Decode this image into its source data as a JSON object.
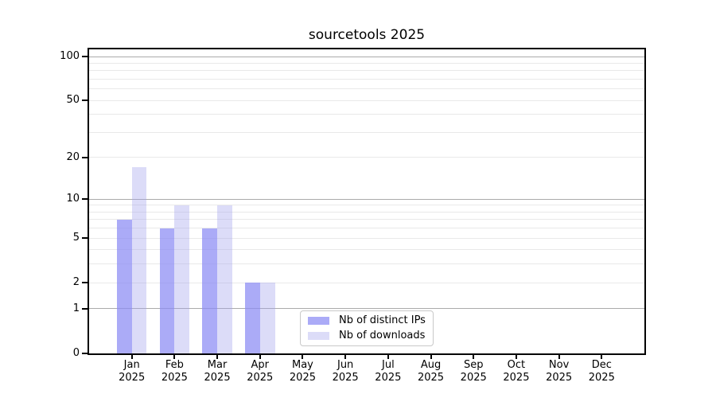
{
  "title": "sourcetools 2025",
  "colors": {
    "bar_ips": "rgba(138,138,244,0.72)",
    "bar_downloads": "rgba(160,160,235,0.37)",
    "grid_major": "#ababab",
    "grid_minor": "#e9e9e9",
    "spine": "#000000",
    "background": "#ffffff"
  },
  "chart_data": {
    "type": "bar",
    "title": "sourcetools 2025",
    "categories": [
      "Jan",
      "Feb",
      "Mar",
      "Apr",
      "May",
      "Jun",
      "Jul",
      "Aug",
      "Sep",
      "Oct",
      "Nov",
      "Dec"
    ],
    "x_year_label": "2025",
    "series": [
      {
        "name": "Nb of distinct IPs",
        "values": [
          7,
          6,
          6,
          2,
          0,
          0,
          0,
          0,
          0,
          0,
          0,
          0
        ]
      },
      {
        "name": "Nb of downloads",
        "values": [
          17,
          9,
          9,
          2,
          0,
          0,
          0,
          0,
          0,
          0,
          0,
          0
        ]
      }
    ],
    "yscale": "log1p",
    "ylim": [
      0,
      111
    ],
    "y_tick_labels": [
      0,
      1,
      2,
      5,
      10,
      20,
      50,
      100
    ],
    "y_major_grid": [
      1,
      10,
      100
    ],
    "y_minor_grid": [
      2,
      3,
      4,
      5,
      6,
      7,
      8,
      9,
      20,
      30,
      40,
      50,
      60,
      70,
      80,
      90
    ],
    "xlabel": "",
    "ylabel": "",
    "grid": true,
    "legend_position": "lower center",
    "bar_group_width": 0.7
  }
}
